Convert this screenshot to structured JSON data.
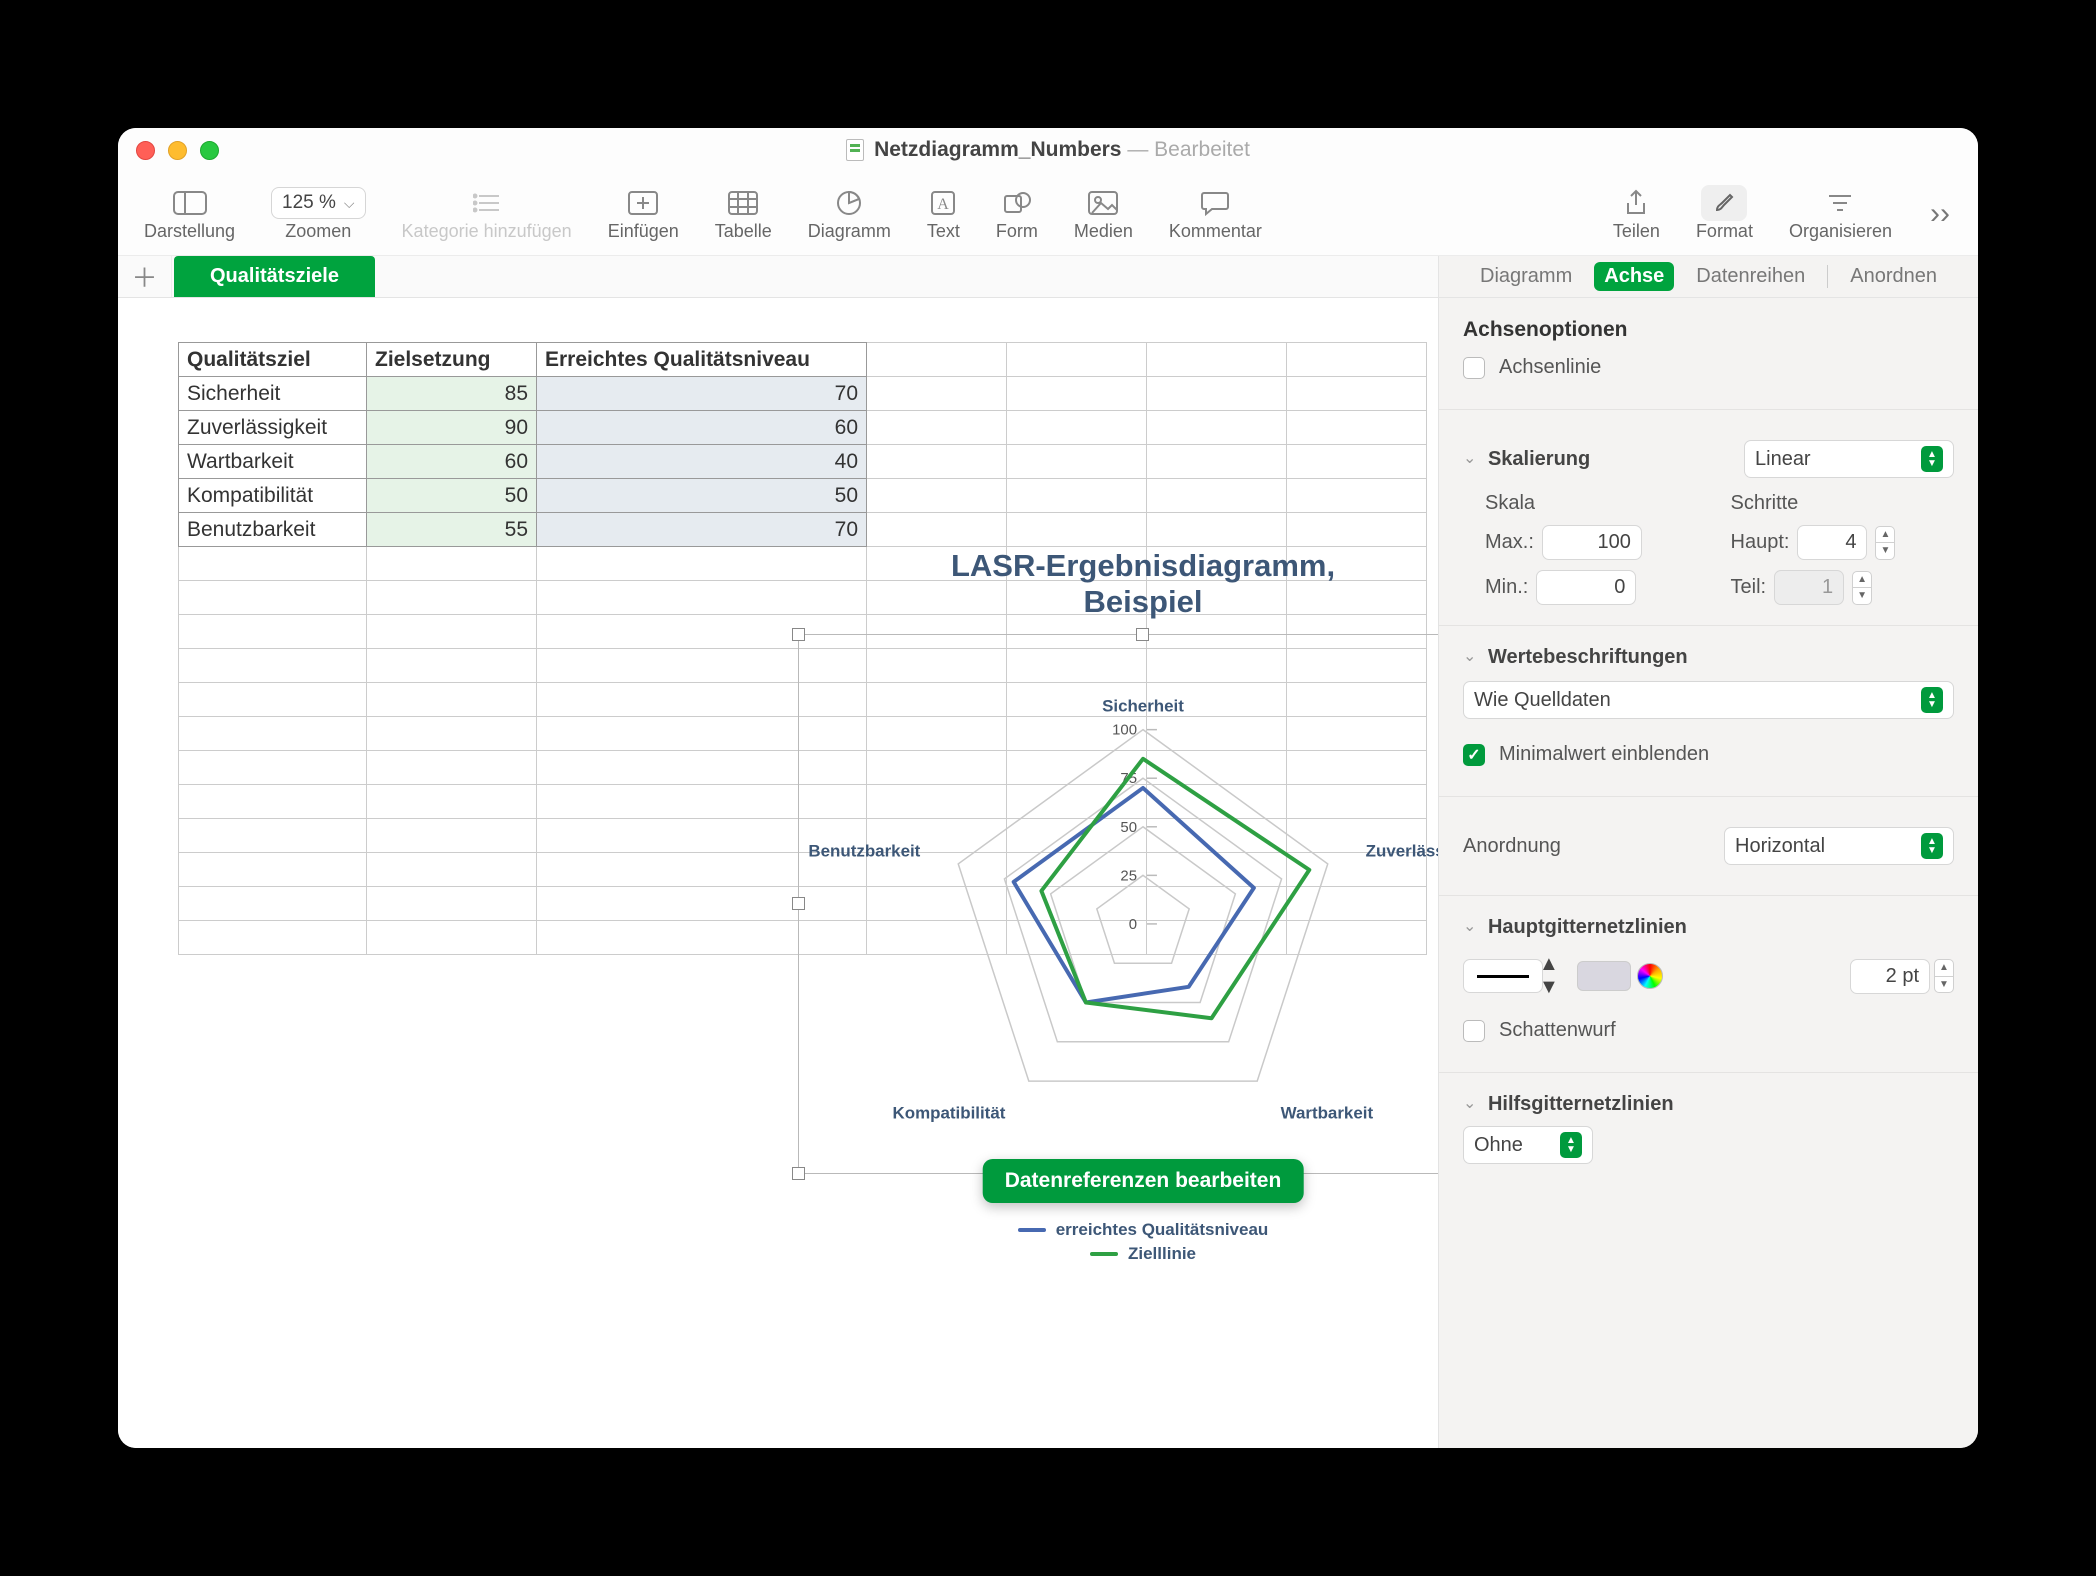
{
  "window": {
    "doc_title": "Netzdiagramm_Numbers",
    "status": "Bearbeitet"
  },
  "toolbar": {
    "darstellung": "Darstellung",
    "zoom_value": "125 %",
    "zoomen": "Zoomen",
    "kategorie": "Kategorie hinzufügen",
    "einfuegen": "Einfügen",
    "tabelle": "Tabelle",
    "diagramm": "Diagramm",
    "text": "Text",
    "form": "Form",
    "medien": "Medien",
    "kommentar": "Kommentar",
    "teilen": "Teilen",
    "format": "Format",
    "organisieren": "Organisieren"
  },
  "sheet": {
    "tab_label": "Qualitätsziele"
  },
  "inspector_tabs": {
    "diagramm": "Diagramm",
    "achse": "Achse",
    "datenreihen": "Datenreihen",
    "anordnen": "Anordnen"
  },
  "table": {
    "headers": [
      "Qualitätsziel",
      "Zielsetzung",
      "Erreichtes Qualitätsniveau"
    ],
    "rows": [
      {
        "q": "Sicherheit",
        "z": 85,
        "e": 70
      },
      {
        "q": "Zuverlässigkeit",
        "z": 90,
        "e": 60
      },
      {
        "q": "Wartbarkeit",
        "z": 60,
        "e": 40
      },
      {
        "q": "Kompatibilität",
        "z": 50,
        "e": 50
      },
      {
        "q": "Benutzbarkeit",
        "z": 55,
        "e": 70
      }
    ]
  },
  "chart": {
    "type": "radar",
    "title_line1": "LASR-Ergebnisdiagramm,",
    "title_line2": "Beispiel",
    "title_color": "#3d5777",
    "title_fontsize": 31,
    "axes": [
      "Sicherheit",
      "Zuverlässigkeit",
      "Wartbarkeit",
      "Kompatibilität",
      "Benutzbarkeit"
    ],
    "ticks": [
      0,
      25,
      50,
      75,
      100
    ],
    "max": 100,
    "grid_color": "#c9c9c9",
    "grid_width": 1.5,
    "background_color": "#ffffff",
    "series": [
      {
        "name": "erreichtes Qualitätsniveau",
        "color": "#4769b1",
        "width": 4,
        "values": [
          70,
          60,
          40,
          50,
          70
        ]
      },
      {
        "name": "Zielllinie",
        "color": "#2ea043",
        "width": 4,
        "values": [
          85,
          90,
          60,
          50,
          55
        ]
      }
    ],
    "axis_label_fontsize": 17,
    "axis_label_color": "#3d5777",
    "edit_button": "Datenreferenzen bearbeiten",
    "legend": [
      "erreichtes Qualitätsniveau",
      "Zielllinie"
    ]
  },
  "inspector": {
    "achsenoptionen": "Achsenoptionen",
    "achsenlinie": "Achsenlinie",
    "skalierung": "Skalierung",
    "skalierung_value": "Linear",
    "skala": "Skala",
    "schritte": "Schritte",
    "max_label": "Max.:",
    "max_value": "100",
    "min_label": "Min.:",
    "min_value": "0",
    "haupt_label": "Haupt:",
    "haupt_value": "4",
    "teil_label": "Teil:",
    "teil_value": "1",
    "wertebeschriftungen": "Wertebeschriftungen",
    "werte_value": "Wie Quelldaten",
    "minimalwert": "Minimalwert einblenden",
    "anordnung": "Anordnung",
    "anordnung_value": "Horizontal",
    "hauptgitter": "Hauptgitternetzlinien",
    "gitter_width": "2 pt",
    "gitter_color": "#d9d7e0",
    "schattenwurf": "Schattenwurf",
    "hilfsgitter": "Hilfsgitternetzlinien",
    "hilfsgitter_value": "Ohne"
  }
}
